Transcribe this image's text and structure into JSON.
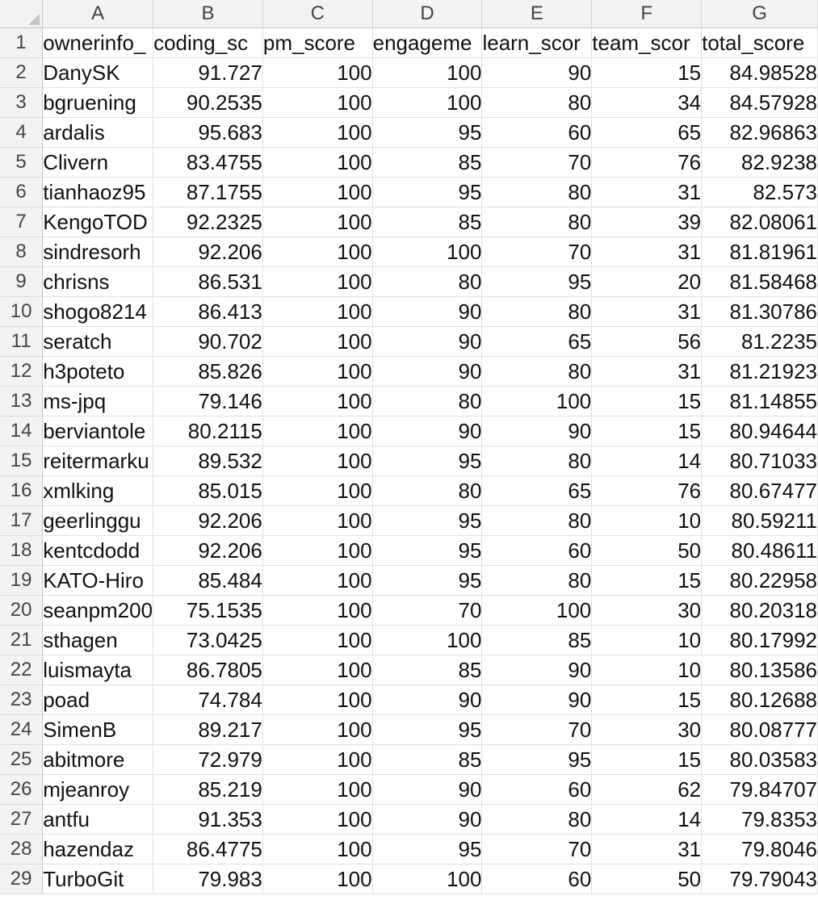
{
  "columns": [
    "A",
    "B",
    "C",
    "D",
    "E",
    "F",
    "G"
  ],
  "headers": [
    "ownerinfo_",
    "coding_sc",
    "pm_score",
    "engageme",
    "learn_scor",
    "team_scor",
    "total_score"
  ],
  "rows": [
    [
      "2",
      "DanySK",
      "91.727",
      "100",
      "100",
      "90",
      "15",
      "84.98528"
    ],
    [
      "3",
      "bgruening",
      "90.2535",
      "100",
      "100",
      "80",
      "34",
      "84.57928"
    ],
    [
      "4",
      "ardalis",
      "95.683",
      "100",
      "95",
      "60",
      "65",
      "82.96863"
    ],
    [
      "5",
      "Clivern",
      "83.4755",
      "100",
      "85",
      "70",
      "76",
      "82.9238"
    ],
    [
      "6",
      "tianhaoz95",
      "87.1755",
      "100",
      "95",
      "80",
      "31",
      "82.573"
    ],
    [
      "7",
      "KengoTOD",
      "92.2325",
      "100",
      "85",
      "80",
      "39",
      "82.08061"
    ],
    [
      "8",
      "sindresorh",
      "92.206",
      "100",
      "100",
      "70",
      "31",
      "81.81961"
    ],
    [
      "9",
      "chrisns",
      "86.531",
      "100",
      "80",
      "95",
      "20",
      "81.58468"
    ],
    [
      "10",
      "shogo8214",
      "86.413",
      "100",
      "90",
      "80",
      "31",
      "81.30786"
    ],
    [
      "11",
      "seratch",
      "90.702",
      "100",
      "90",
      "65",
      "56",
      "81.2235"
    ],
    [
      "12",
      "h3poteto",
      "85.826",
      "100",
      "90",
      "80",
      "31",
      "81.21923"
    ],
    [
      "13",
      "ms-jpq",
      "79.146",
      "100",
      "80",
      "100",
      "15",
      "81.14855"
    ],
    [
      "14",
      "berviantole",
      "80.2115",
      "100",
      "90",
      "90",
      "15",
      "80.94644"
    ],
    [
      "15",
      "reitermarku",
      "89.532",
      "100",
      "95",
      "80",
      "14",
      "80.71033"
    ],
    [
      "16",
      "xmlking",
      "85.015",
      "100",
      "80",
      "65",
      "76",
      "80.67477"
    ],
    [
      "17",
      "geerlinggu",
      "92.206",
      "100",
      "95",
      "80",
      "10",
      "80.59211"
    ],
    [
      "18",
      "kentcdodd",
      "92.206",
      "100",
      "95",
      "60",
      "50",
      "80.48611"
    ],
    [
      "19",
      "KATO-Hiro",
      "85.484",
      "100",
      "95",
      "80",
      "15",
      "80.22958"
    ],
    [
      "20",
      "seanpm200",
      "75.1535",
      "100",
      "70",
      "100",
      "30",
      "80.20318"
    ],
    [
      "21",
      "sthagen",
      "73.0425",
      "100",
      "100",
      "85",
      "10",
      "80.17992"
    ],
    [
      "22",
      "luismayta",
      "86.7805",
      "100",
      "85",
      "90",
      "10",
      "80.13586"
    ],
    [
      "23",
      "poad",
      "74.784",
      "100",
      "90",
      "90",
      "15",
      "80.12688"
    ],
    [
      "24",
      "SimenB",
      "89.217",
      "100",
      "95",
      "70",
      "30",
      "80.08777"
    ],
    [
      "25",
      "abitmore",
      "72.979",
      "100",
      "85",
      "95",
      "15",
      "80.03583"
    ],
    [
      "26",
      "mjeanroy",
      "85.219",
      "100",
      "90",
      "60",
      "62",
      "79.84707"
    ],
    [
      "27",
      "antfu",
      "91.353",
      "100",
      "90",
      "80",
      "14",
      "79.8353"
    ],
    [
      "28",
      "hazendaz",
      "86.4775",
      "100",
      "95",
      "70",
      "31",
      "79.8046"
    ],
    [
      "29",
      "TurboGit",
      "79.983",
      "100",
      "100",
      "60",
      "50",
      "79.79043"
    ]
  ]
}
